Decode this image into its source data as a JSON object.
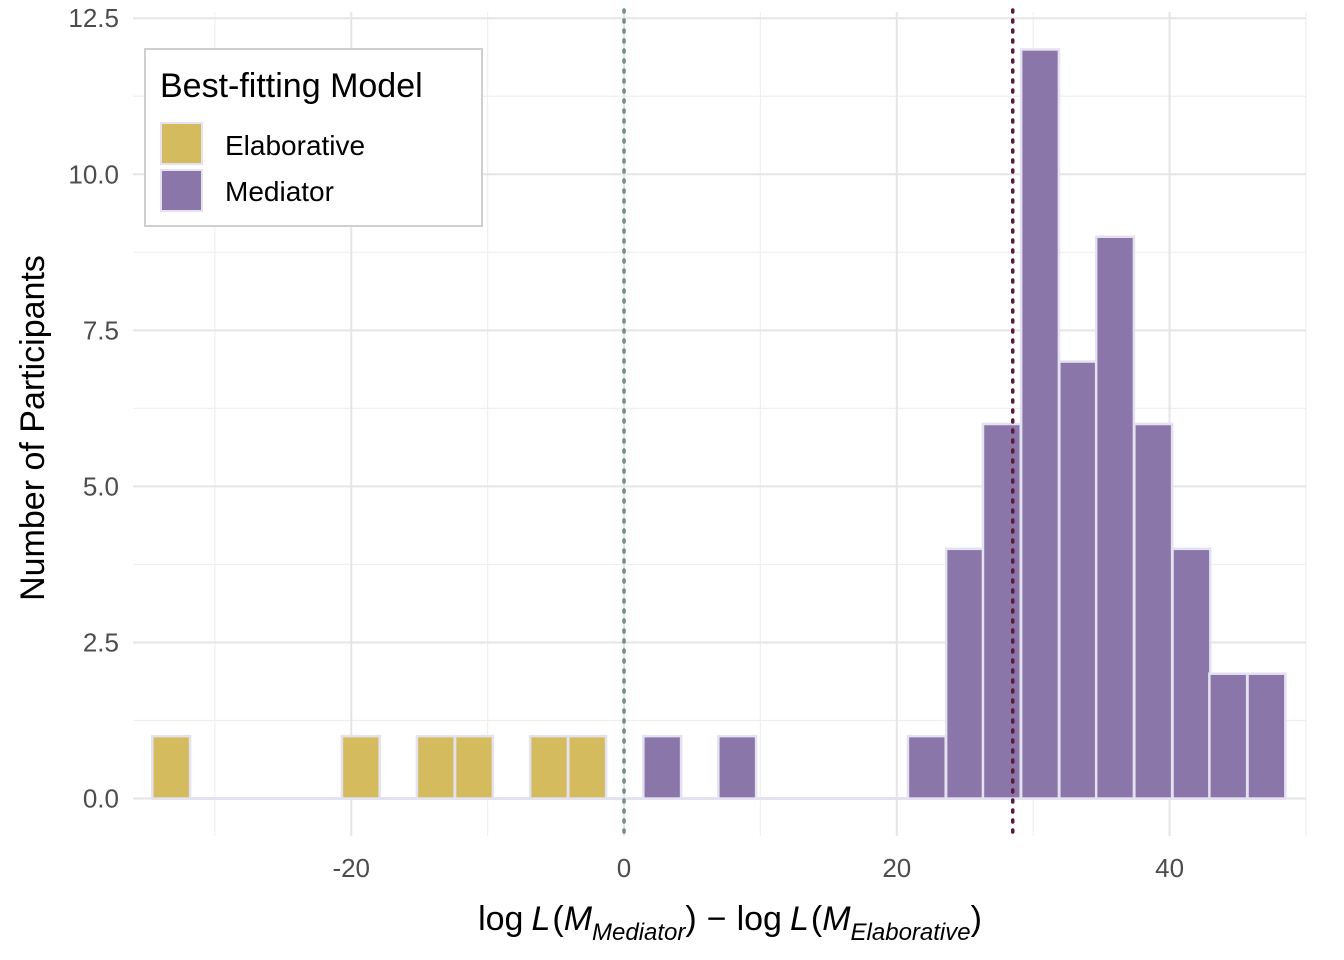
{
  "chart_data": {
    "type": "bar",
    "subtype": "histogram",
    "title": "",
    "xlabel": {
      "prefix": "log",
      "L": "L",
      "M": "M",
      "sub1": "Mediator",
      "minus": "−",
      "sub2": "Elaborative"
    },
    "ylabel": "Number of Participants",
    "xlim": [
      -36,
      50
    ],
    "ylim": [
      -0.6,
      12.6
    ],
    "x_ticks": [
      -20,
      0,
      20,
      40
    ],
    "x_tick_labels": [
      "-20",
      "0",
      "20",
      "40"
    ],
    "y_ticks": [
      0,
      2.5,
      5,
      7.5,
      10,
      12.5
    ],
    "y_tick_labels": [
      "0.0",
      "2.5",
      "5.0",
      "7.5",
      "10.0",
      "12.5"
    ],
    "bin_width": 2.77,
    "grid": true,
    "legend": {
      "title": "Best-fitting Model",
      "placement": "top-left",
      "entries": [
        {
          "name": "Elaborative",
          "color": "#d4bc5e"
        },
        {
          "name": "Mediator",
          "color": "#8b76aa"
        }
      ]
    },
    "reference_lines": [
      {
        "x": 0,
        "style": "dotted",
        "color": "#6f8f86"
      },
      {
        "x": 28.5,
        "style": "dotted",
        "color": "#5a1a3a"
      }
    ],
    "series": [
      {
        "name": "Elaborative",
        "color": "#d4bc5e",
        "bins": [
          {
            "x": -33.2,
            "count": 1
          },
          {
            "x": -19.3,
            "count": 1
          },
          {
            "x": -13.8,
            "count": 1
          },
          {
            "x": -11.0,
            "count": 1
          },
          {
            "x": -5.5,
            "count": 1
          },
          {
            "x": -2.7,
            "count": 1
          }
        ]
      },
      {
        "name": "Mediator",
        "color": "#8b76aa",
        "bins": [
          {
            "x": 2.8,
            "count": 1
          },
          {
            "x": 8.3,
            "count": 1
          },
          {
            "x": 22.2,
            "count": 1
          },
          {
            "x": 25.0,
            "count": 4
          },
          {
            "x": 27.7,
            "count": 6
          },
          {
            "x": 30.5,
            "count": 12
          },
          {
            "x": 33.3,
            "count": 7
          },
          {
            "x": 36.0,
            "count": 9
          },
          {
            "x": 38.8,
            "count": 6
          },
          {
            "x": 41.6,
            "count": 4
          },
          {
            "x": 44.3,
            "count": 2
          },
          {
            "x": 47.1,
            "count": 2
          }
        ]
      }
    ]
  }
}
